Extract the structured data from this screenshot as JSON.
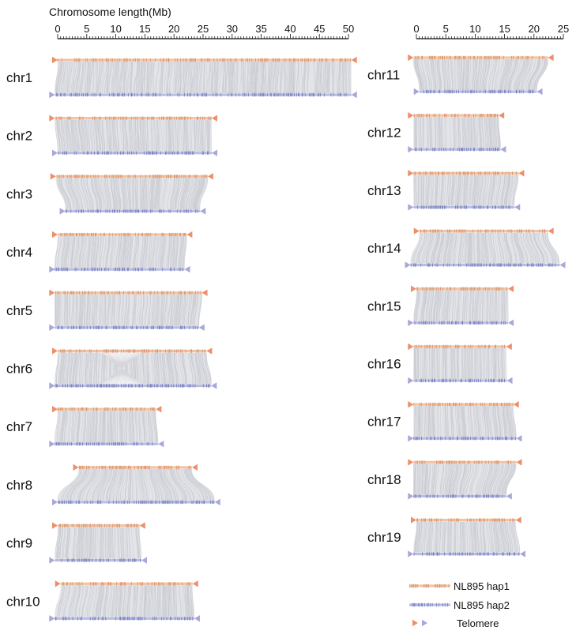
{
  "chart_data": {
    "type": "synteny",
    "axis": {
      "title": "Chromosome length(Mb)",
      "left": {
        "range": [
          0,
          50
        ],
        "ticks": [
          "0",
          "5",
          "10",
          "15",
          "20",
          "25",
          "30",
          "35",
          "40",
          "45",
          "50"
        ]
      },
      "right": {
        "range": [
          0,
          25
        ],
        "ticks": [
          "0",
          "5",
          "10",
          "15",
          "20",
          "25"
        ]
      }
    },
    "columns": [
      {
        "axis": "left",
        "chromosomes": [
          {
            "name": "chr1",
            "hap1": [
              0.0,
              50.5
            ],
            "hap2": [
              -0.5,
              50.5
            ],
            "inversions": []
          },
          {
            "name": "chr2",
            "hap1": [
              -0.5,
              26.5
            ],
            "hap2": [
              0.0,
              26.5
            ],
            "inversions": []
          },
          {
            "name": "chr3",
            "hap1": [
              -0.3,
              25.8
            ],
            "hap2": [
              1.3,
              24.5
            ],
            "inversions": []
          },
          {
            "name": "chr4",
            "hap1": [
              0.0,
              22.2
            ],
            "hap2": [
              -0.5,
              21.8
            ],
            "inversions": []
          },
          {
            "name": "chr5",
            "hap1": [
              -0.5,
              24.8
            ],
            "hap2": [
              -0.5,
              24.3
            ],
            "inversions": []
          },
          {
            "name": "chr6",
            "hap1": [
              0.0,
              25.6
            ],
            "hap2": [
              -0.5,
              26.4
            ],
            "inversions": [
              [
                7.5,
                14.5
              ]
            ]
          },
          {
            "name": "chr7",
            "hap1": [
              0.0,
              16.9
            ],
            "hap2": [
              -0.5,
              17.3
            ],
            "inversions": []
          },
          {
            "name": "chr8",
            "hap1": [
              3.6,
              23.1
            ],
            "hap2": [
              0.0,
              27.0
            ],
            "inversions": []
          },
          {
            "name": "chr9",
            "hap1": [
              0.0,
              14.1
            ],
            "hap2": [
              -0.5,
              14.4
            ],
            "inversions": []
          },
          {
            "name": "chr10",
            "hap1": [
              0.5,
              23.2
            ],
            "hap2": [
              -0.5,
              23.5
            ],
            "inversions": []
          }
        ]
      },
      {
        "axis": "right",
        "chromosomes": [
          {
            "name": "chr11",
            "hap1": [
              -0.5,
              22.4
            ],
            "hap2": [
              0.5,
              20.5
            ],
            "inversions": []
          },
          {
            "name": "chr12",
            "hap1": [
              -0.5,
              14.0
            ],
            "hap2": [
              -0.5,
              14.3
            ],
            "inversions": []
          },
          {
            "name": "chr13",
            "hap1": [
              -0.5,
              17.4
            ],
            "hap2": [
              -0.5,
              16.7
            ],
            "inversions": []
          },
          {
            "name": "chr14",
            "hap1": [
              0.5,
              22.4
            ],
            "hap2": [
              -1.0,
              24.4
            ],
            "inversions": []
          },
          {
            "name": "chr15",
            "hap1": [
              0.0,
              15.6
            ],
            "hap2": [
              -0.5,
              15.6
            ],
            "inversions": []
          },
          {
            "name": "chr16",
            "hap1": [
              -0.5,
              15.3
            ],
            "hap2": [
              -0.5,
              15.4
            ],
            "inversions": []
          },
          {
            "name": "chr17",
            "hap1": [
              -0.5,
              16.5
            ],
            "hap2": [
              -0.5,
              17.0
            ],
            "inversions": []
          },
          {
            "name": "chr18",
            "hap1": [
              -0.5,
              17.0
            ],
            "hap2": [
              -0.5,
              15.3
            ],
            "inversions": []
          },
          {
            "name": "chr19",
            "hap1": [
              0.0,
              16.9
            ],
            "hap2": [
              -0.5,
              17.6
            ],
            "inversions": []
          }
        ]
      }
    ],
    "legend": [
      {
        "label": "NL895 hap1",
        "kind": "hap1"
      },
      {
        "label": "NL895 hap2",
        "kind": "hap2"
      },
      {
        "label": "Telomere",
        "kind": "telomere"
      }
    ],
    "colors": {
      "hap1": "#d98a5c",
      "hap1_light": "#efc4a6",
      "hap2": "#6a73b8",
      "hap2_light": "#b9bde0",
      "telomere_hap1": "#ee8f6a",
      "telomere_hap2": "#a9a6d8",
      "link": "#c9cbd1",
      "gap": "#444444"
    }
  }
}
